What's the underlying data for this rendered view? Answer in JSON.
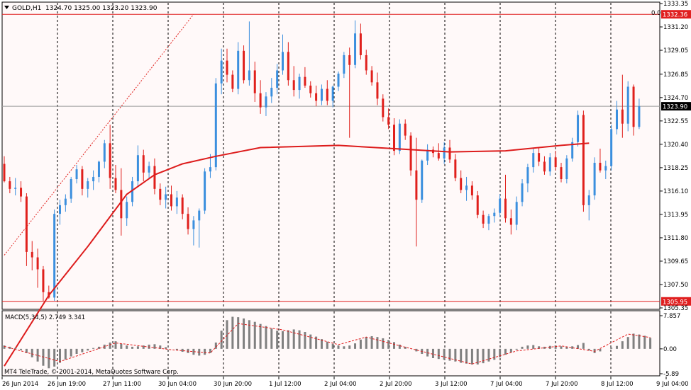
{
  "header": {
    "symbol_label": "GOLD,H1",
    "ohlc": "1324.70 1325.00 1323.20 1323.90",
    "menu_icon": "triangle-down-icon"
  },
  "level_label": "0.0",
  "copyright": "MT4 TeleTrade, © 2001-2014, MetaQuotes Software Corp.",
  "colors": {
    "background": "#fff9f9",
    "bull": "#3b8fde",
    "bear": "#e0201c",
    "ma": "#dd1c1c",
    "macd_hist": "#808080",
    "macd_signal": "#e21b1b",
    "axis_marker_bg": "#e02020",
    "current_marker_bg": "#000000"
  },
  "chart_data": [
    {
      "type": "candlestick",
      "symbol": "GOLD",
      "timeframe": "H1",
      "y_ticks": [
        "1333.35",
        "1331.20",
        "1329.05",
        "1326.85",
        "1324.70",
        "1322.55",
        "1320.40",
        "1318.25",
        "1316.10",
        "1313.95",
        "1311.80",
        "1309.65",
        "1307.50",
        "1305.35"
      ],
      "x_ticks": [
        "26 Jun 2014",
        "26 Jun 19:00",
        "27 Jun 11:00",
        "30 Jun 04:00",
        "30 Jun 20:00",
        "1 Jul 12:00",
        "2 Jul 04:00",
        "2 Jul 20:00",
        "3 Jul 12:00",
        "7 Jul 04:00",
        "7 Jul 20:00",
        "8 Jul 12:00",
        "9 Jul 04:00"
      ],
      "ylim": [
        1305.35,
        1333.35
      ],
      "current_price": "1323.90",
      "hlines": [
        {
          "value": "1332.36"
        },
        {
          "value": "1305.95"
        }
      ],
      "moving_average": {
        "points": [
          [
            0,
            1300.0
          ],
          [
            8,
            1306.5
          ],
          [
            15,
            1311.0
          ],
          [
            22,
            1315.8
          ],
          [
            27,
            1317.6
          ],
          [
            32,
            1318.6
          ],
          [
            38,
            1319.3
          ],
          [
            46,
            1320.1
          ],
          [
            60,
            1320.3
          ],
          [
            70,
            1320.0
          ],
          [
            80,
            1319.7
          ],
          [
            90,
            1319.8
          ],
          [
            100,
            1320.3
          ],
          [
            105,
            1320.5
          ]
        ]
      },
      "fib_line": {
        "from": [
          0,
          1310.2
        ],
        "to": [
          34,
          1332.36
        ]
      },
      "ohlc": [
        [
          1318.6,
          1319.3,
          1316.9,
          1317.0
        ],
        [
          1317.0,
          1317.4,
          1315.9,
          1316.3
        ],
        [
          1316.3,
          1317.3,
          1315.7,
          1316.4
        ],
        [
          1316.4,
          1317.0,
          1315.1,
          1315.6
        ],
        [
          1315.6,
          1315.9,
          1309.2,
          1310.5
        ],
        [
          1310.5,
          1311.5,
          1308.8,
          1310.0
        ],
        [
          1310.0,
          1310.8,
          1307.2,
          1308.9
        ],
        [
          1308.9,
          1309.2,
          1306.0,
          1306.8
        ],
        [
          1306.8,
          1307.4,
          1306.2,
          1306.3
        ],
        [
          1306.3,
          1314.4,
          1306.0,
          1314.0
        ],
        [
          1314.0,
          1315.3,
          1313.0,
          1314.8
        ],
        [
          1314.8,
          1315.8,
          1314.2,
          1315.4
        ],
        [
          1315.4,
          1317.4,
          1315.0,
          1317.2
        ],
        [
          1317.2,
          1318.5,
          1316.8,
          1318.1
        ],
        [
          1318.1,
          1318.4,
          1315.7,
          1316.3
        ],
        [
          1316.3,
          1317.3,
          1315.5,
          1317.0
        ],
        [
          1317.0,
          1318.0,
          1316.2,
          1317.4
        ],
        [
          1317.4,
          1318.9,
          1316.9,
          1318.8
        ],
        [
          1318.8,
          1320.8,
          1318.2,
          1320.5
        ],
        [
          1320.5,
          1322.2,
          1316.3,
          1317.3
        ],
        [
          1317.3,
          1318.5,
          1315.9,
          1316.2
        ],
        [
          1316.2,
          1318.2,
          1312.0,
          1313.6
        ],
        [
          1313.6,
          1315.6,
          1312.9,
          1315.1
        ],
        [
          1315.1,
          1317.4,
          1314.7,
          1317.0
        ],
        [
          1317.0,
          1320.3,
          1316.5,
          1319.4
        ],
        [
          1319.4,
          1319.9,
          1317.0,
          1317.8
        ],
        [
          1317.8,
          1318.8,
          1317.2,
          1318.4
        ],
        [
          1318.4,
          1319.1,
          1315.8,
          1316.3
        ],
        [
          1316.3,
          1316.8,
          1314.8,
          1315.3
        ],
        [
          1315.3,
          1316.5,
          1314.5,
          1315.8
        ],
        [
          1315.8,
          1316.6,
          1314.3,
          1314.7
        ],
        [
          1314.7,
          1316.1,
          1314.0,
          1315.5
        ],
        [
          1315.5,
          1315.8,
          1313.5,
          1314.0
        ],
        [
          1314.0,
          1314.6,
          1312.1,
          1312.6
        ],
        [
          1312.6,
          1313.8,
          1311.1,
          1313.4
        ],
        [
          1313.4,
          1314.5,
          1310.9,
          1314.3
        ],
        [
          1314.3,
          1318.2,
          1314.0,
          1317.9
        ],
        [
          1317.9,
          1319.5,
          1317.3,
          1318.3
        ],
        [
          1318.3,
          1326.5,
          1318.0,
          1326.0
        ],
        [
          1326.0,
          1329.2,
          1325.0,
          1328.1
        ],
        [
          1328.1,
          1329.2,
          1326.1,
          1326.8
        ],
        [
          1326.8,
          1327.2,
          1325.2,
          1325.5
        ],
        [
          1325.5,
          1329.8,
          1325.0,
          1329.0
        ],
        [
          1329.0,
          1329.5,
          1326.0,
          1326.3
        ],
        [
          1326.3,
          1331.7,
          1325.8,
          1327.2
        ],
        [
          1327.2,
          1328.0,
          1324.3,
          1325.1
        ],
        [
          1325.1,
          1326.3,
          1323.2,
          1323.8
        ],
        [
          1323.8,
          1325.2,
          1323.0,
          1324.8
        ],
        [
          1324.8,
          1326.5,
          1324.2,
          1325.6
        ],
        [
          1325.6,
          1327.8,
          1325.0,
          1327.2
        ],
        [
          1327.2,
          1330.5,
          1326.8,
          1328.9
        ],
        [
          1328.9,
          1329.8,
          1325.8,
          1326.3
        ],
        [
          1326.3,
          1327.6,
          1324.8,
          1325.4
        ],
        [
          1325.4,
          1326.9,
          1324.6,
          1326.6
        ],
        [
          1326.6,
          1327.5,
          1325.6,
          1325.8
        ],
        [
          1325.8,
          1326.2,
          1324.7,
          1325.1
        ],
        [
          1325.1,
          1325.8,
          1323.9,
          1324.4
        ],
        [
          1324.4,
          1325.9,
          1324.0,
          1325.5
        ],
        [
          1325.5,
          1326.3,
          1324.0,
          1324.4
        ],
        [
          1324.4,
          1325.8,
          1323.8,
          1325.7
        ],
        [
          1325.7,
          1327.1,
          1325.3,
          1326.9
        ],
        [
          1326.9,
          1328.9,
          1326.5,
          1328.6
        ],
        [
          1328.6,
          1329.3,
          1321.0,
          1327.7
        ],
        [
          1327.7,
          1331.8,
          1327.4,
          1330.6
        ],
        [
          1330.6,
          1331.5,
          1328.2,
          1328.6
        ],
        [
          1328.6,
          1329.1,
          1326.8,
          1327.2
        ],
        [
          1327.2,
          1327.6,
          1325.8,
          1326.1
        ],
        [
          1326.1,
          1327.0,
          1324.0,
          1324.6
        ],
        [
          1324.6,
          1325.0,
          1322.5,
          1322.9
        ],
        [
          1322.9,
          1323.7,
          1321.8,
          1322.2
        ],
        [
          1322.2,
          1322.8,
          1319.4,
          1319.8
        ],
        [
          1319.8,
          1322.7,
          1319.5,
          1322.3
        ],
        [
          1322.3,
          1322.7,
          1320.8,
          1321.2
        ],
        [
          1321.2,
          1321.5,
          1317.5,
          1318.0
        ],
        [
          1318.0,
          1321.0,
          1311.0,
          1315.3
        ],
        [
          1315.3,
          1319.0,
          1315.0,
          1318.9
        ],
        [
          1318.9,
          1320.4,
          1318.5,
          1319.9
        ],
        [
          1319.9,
          1320.2,
          1319.2,
          1319.6
        ],
        [
          1319.6,
          1320.5,
          1318.9,
          1319.1
        ],
        [
          1319.1,
          1320.6,
          1318.6,
          1320.1
        ],
        [
          1320.1,
          1320.8,
          1318.7,
          1319.0
        ],
        [
          1319.0,
          1319.5,
          1317.0,
          1317.3
        ],
        [
          1317.3,
          1318.0,
          1315.9,
          1316.2
        ],
        [
          1316.2,
          1317.4,
          1315.2,
          1316.6
        ],
        [
          1316.6,
          1317.0,
          1315.3,
          1315.7
        ],
        [
          1315.7,
          1316.1,
          1313.6,
          1313.9
        ],
        [
          1313.9,
          1314.3,
          1312.7,
          1313.1
        ],
        [
          1313.1,
          1314.0,
          1312.5,
          1313.8
        ],
        [
          1313.8,
          1314.5,
          1313.2,
          1314.1
        ],
        [
          1314.1,
          1315.8,
          1313.7,
          1315.4
        ],
        [
          1315.4,
          1317.6,
          1313.2,
          1313.6
        ],
        [
          1313.6,
          1314.4,
          1312.1,
          1313.0
        ],
        [
          1313.0,
          1315.6,
          1312.5,
          1315.1
        ],
        [
          1315.1,
          1317.2,
          1314.7,
          1316.8
        ],
        [
          1316.8,
          1318.6,
          1316.0,
          1318.3
        ],
        [
          1318.3,
          1320.0,
          1317.8,
          1319.6
        ],
        [
          1319.6,
          1320.1,
          1318.4,
          1318.8
        ],
        [
          1318.8,
          1319.3,
          1317.6,
          1317.9
        ],
        [
          1317.9,
          1319.6,
          1317.5,
          1319.2
        ],
        [
          1319.2,
          1319.8,
          1318.0,
          1318.3
        ],
        [
          1318.3,
          1318.7,
          1316.9,
          1317.2
        ],
        [
          1317.2,
          1319.4,
          1316.8,
          1319.1
        ],
        [
          1319.1,
          1321.0,
          1318.8,
          1320.6
        ],
        [
          1320.6,
          1323.5,
          1320.2,
          1323.1
        ],
        [
          1323.1,
          1323.5,
          1314.2,
          1314.8
        ],
        [
          1314.8,
          1316.2,
          1313.4,
          1315.7
        ],
        [
          1315.7,
          1319.2,
          1315.3,
          1318.7
        ],
        [
          1318.7,
          1320.0,
          1317.8,
          1318.0
        ],
        [
          1318.0,
          1318.9,
          1317.2,
          1318.4
        ],
        [
          1318.4,
          1322.2,
          1318.0,
          1321.8
        ],
        [
          1321.8,
          1324.4,
          1321.3,
          1323.6
        ],
        [
          1323.6,
          1326.8,
          1321.0,
          1322.3
        ],
        [
          1322.3,
          1326.2,
          1321.6,
          1325.7
        ],
        [
          1325.7,
          1325.9,
          1321.2,
          1322.0
        ],
        [
          1322.0,
          1324.6,
          1321.8,
          1323.9
        ]
      ]
    },
    {
      "type": "bar",
      "title": "MACD(5,34,5) 2.749 3.341",
      "y_ticks": [
        "7.857",
        "0.00",
        "-5.89"
      ],
      "ylim": [
        -5.89,
        7.857
      ],
      "histogram": [
        0.8,
        0.5,
        0.2,
        -0.3,
        -1.0,
        -2.0,
        -3.0,
        -4.0,
        -4.6,
        -4.2,
        -3.3,
        -2.5,
        -1.8,
        -1.2,
        -0.8,
        -0.4,
        0.2,
        0.5,
        1.0,
        1.5,
        1.8,
        1.2,
        0.8,
        0.5,
        0.6,
        0.8,
        1.0,
        1.1,
        0.8,
        0.4,
        0.0,
        -0.3,
        -0.7,
        -1.0,
        -1.4,
        -1.6,
        -1.4,
        -1.0,
        1.5,
        4.3,
        6.8,
        7.6,
        7.5,
        7.2,
        6.8,
        6.4,
        5.9,
        5.4,
        4.8,
        4.3,
        4.2,
        4.4,
        4.6,
        4.4,
        4.0,
        3.4,
        2.9,
        2.3,
        1.7,
        1.2,
        0.8,
        0.6,
        0.8,
        1.3,
        2.2,
        2.8,
        3.0,
        2.8,
        2.5,
        2.1,
        1.6,
        1.0,
        0.5,
        0.0,
        -0.6,
        -1.2,
        -1.8,
        -2.2,
        -2.4,
        -2.6,
        -2.8,
        -3.0,
        -3.3,
        -3.5,
        -3.7,
        -3.7,
        -3.4,
        -3.0,
        -2.6,
        -2.0,
        -1.4,
        -0.8,
        -0.2,
        0.5,
        0.8,
        0.9,
        0.6,
        0.5,
        0.7,
        0.8,
        0.6,
        0.5,
        0.6,
        0.9,
        1.4,
        -0.4,
        -1.0,
        -0.6,
        0.0,
        0.3,
        0.7,
        1.8,
        2.8,
        3.6,
        3.4,
        3.1,
        2.6
      ],
      "signal": [
        [
          0,
          0.6
        ],
        [
          10,
          -3.0
        ],
        [
          20,
          1.4
        ],
        [
          30,
          -0.2
        ],
        [
          37,
          -1.0
        ],
        [
          42,
          6.0
        ],
        [
          50,
          4.5
        ],
        [
          60,
          1.0
        ],
        [
          65,
          2.8
        ],
        [
          72,
          0.4
        ],
        [
          84,
          -3.6
        ],
        [
          92,
          -0.5
        ],
        [
          100,
          0.7
        ],
        [
          106,
          -0.6
        ],
        [
          112,
          3.5
        ],
        [
          116,
          2.7
        ]
      ]
    }
  ]
}
